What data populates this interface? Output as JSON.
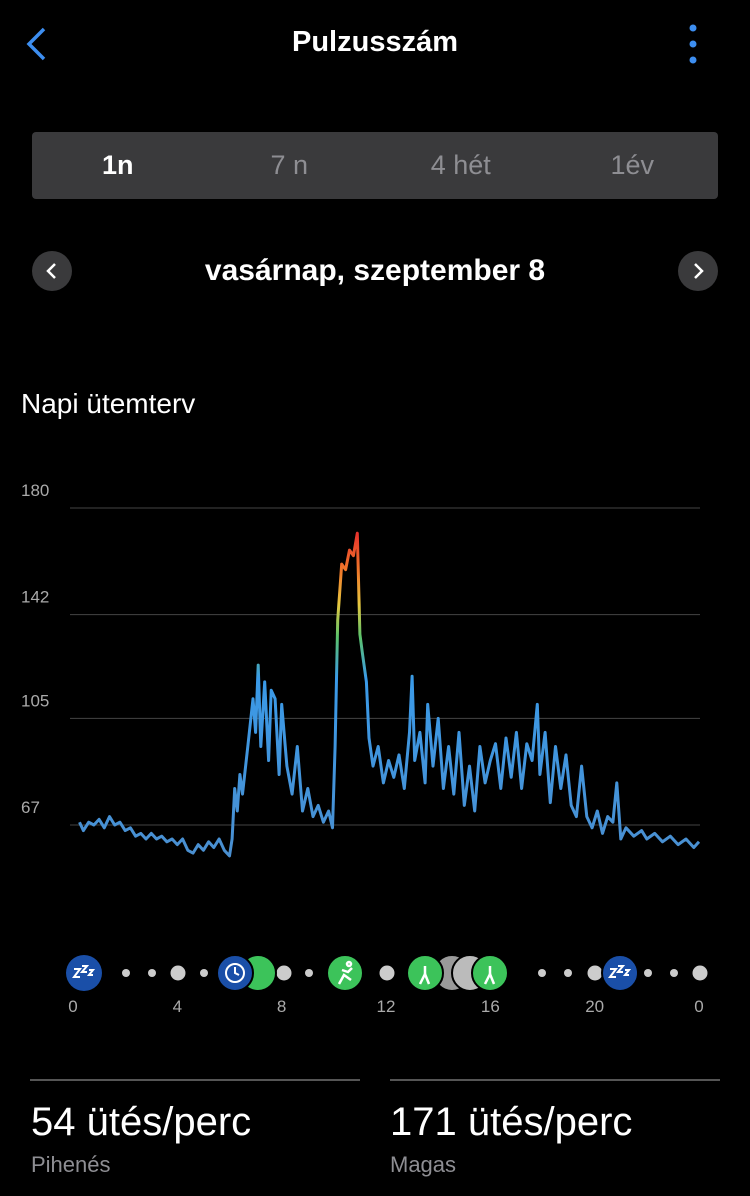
{
  "header": {
    "title": "Pulzusszám"
  },
  "tabs": [
    "1n",
    "7 n",
    "4 hét",
    "1év"
  ],
  "date": "vasárnap, szeptember 8",
  "section_title": "Napi ütemterv",
  "chart_data": {
    "type": "line",
    "x": [
      0.25,
      0.4,
      0.6,
      0.8,
      1.0,
      1.2,
      1.4,
      1.6,
      1.8,
      2.0,
      2.2,
      2.4,
      2.6,
      2.8,
      3.0,
      3.2,
      3.4,
      3.6,
      3.8,
      4.0,
      4.2,
      4.4,
      4.6,
      4.8,
      5.0,
      5.2,
      5.4,
      5.6,
      5.8,
      6.0,
      6.1,
      6.2,
      6.3,
      6.4,
      6.5,
      6.7,
      6.9,
      7.0,
      7.1,
      7.2,
      7.35,
      7.5,
      7.6,
      7.75,
      7.9,
      8.0,
      8.2,
      8.4,
      8.6,
      8.8,
      9.0,
      9.2,
      9.4,
      9.6,
      9.8,
      9.95,
      10.05,
      10.15,
      10.3,
      10.45,
      10.6,
      10.75,
      10.9,
      11.0,
      11.1,
      11.25,
      11.35,
      11.5,
      11.7,
      11.9,
      12.1,
      12.3,
      12.5,
      12.7,
      12.9,
      13.0,
      13.1,
      13.3,
      13.5,
      13.6,
      13.8,
      14.0,
      14.2,
      14.4,
      14.6,
      14.8,
      15.0,
      15.2,
      15.4,
      15.6,
      15.8,
      16.0,
      16.2,
      16.4,
      16.6,
      16.8,
      17.0,
      17.2,
      17.4,
      17.6,
      17.8,
      17.9,
      18.1,
      18.3,
      18.5,
      18.7,
      18.9,
      19.1,
      19.3,
      19.5,
      19.7,
      19.9,
      20.1,
      20.3,
      20.5,
      20.7,
      20.85,
      21.0,
      21.2,
      21.5,
      21.8,
      22.0,
      22.3,
      22.6,
      22.9,
      23.2,
      23.5,
      23.8,
      24.0
    ],
    "values": [
      68,
      65,
      68,
      67,
      69,
      66,
      70,
      67,
      68,
      65,
      66,
      63,
      64,
      62,
      64,
      62,
      63,
      61,
      62,
      60,
      62,
      58,
      57,
      60,
      58,
      61,
      59,
      62,
      58,
      56,
      62,
      80,
      72,
      85,
      78,
      95,
      112,
      100,
      124,
      95,
      118,
      90,
      115,
      112,
      85,
      110,
      88,
      78,
      95,
      72,
      80,
      70,
      74,
      68,
      72,
      66,
      95,
      140,
      160,
      158,
      165,
      163,
      171,
      135,
      128,
      118,
      98,
      88,
      95,
      82,
      90,
      84,
      92,
      80,
      100,
      120,
      90,
      100,
      82,
      110,
      88,
      105,
      80,
      95,
      78,
      100,
      74,
      88,
      72,
      95,
      82,
      90,
      96,
      80,
      98,
      84,
      100,
      80,
      96,
      90,
      110,
      85,
      100,
      75,
      95,
      80,
      92,
      74,
      70,
      88,
      70,
      66,
      72,
      64,
      70,
      68,
      82,
      62,
      66,
      63,
      65,
      62,
      64,
      61,
      63,
      60,
      62,
      59,
      61
    ],
    "xlim": [
      0,
      24
    ],
    "xticks": [
      0,
      4,
      8,
      12,
      16,
      20,
      {
        "value": 24,
        "label": "0"
      }
    ],
    "ylim": [
      50,
      180
    ],
    "yticks": [
      67,
      105,
      142,
      180
    ],
    "grid": true
  },
  "stats": [
    {
      "value": "54 ütés/perc",
      "label": "Pihenés"
    },
    {
      "value": "171 ütés/perc",
      "label": "Magas"
    }
  ]
}
